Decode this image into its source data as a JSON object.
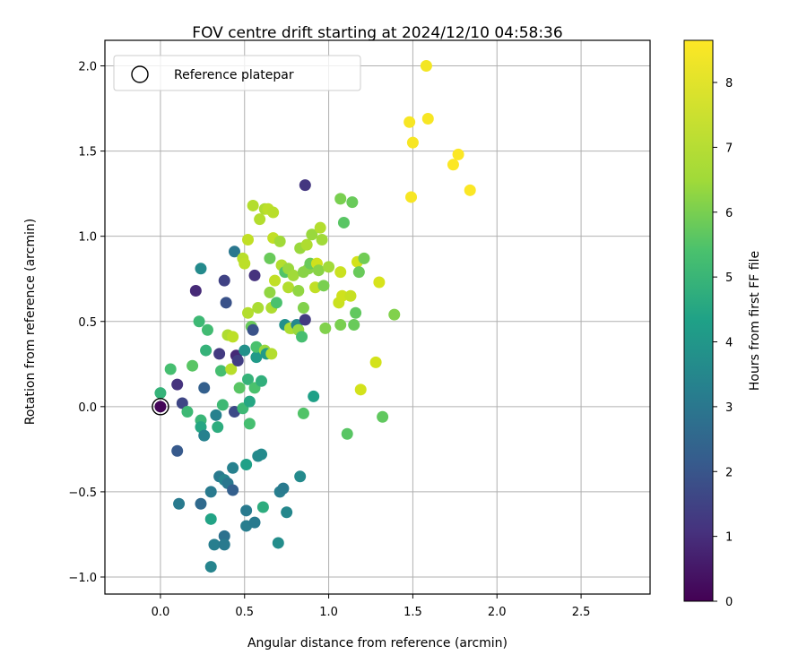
{
  "chart_data": {
    "type": "scatter",
    "title": "FOV centre drift starting at 2024/12/10 04:58:36",
    "xlabel": "Angular distance from reference (arcmin)",
    "ylabel": "Rotation from reference (arcmin)",
    "xlim": [
      -0.33,
      2.91
    ],
    "ylim": [
      -1.1,
      2.15
    ],
    "xticks": [
      0.0,
      0.5,
      1.0,
      1.5,
      2.0,
      2.5
    ],
    "xtick_labels": [
      "0.0",
      "0.5",
      "1.0",
      "1.5",
      "2.0",
      "2.5"
    ],
    "yticks": [
      -1.0,
      -0.5,
      0.0,
      0.5,
      1.0,
      1.5,
      2.0
    ],
    "ytick_labels": [
      "−1.0",
      "−0.5",
      "0.0",
      "0.5",
      "1.0",
      "1.5",
      "2.0"
    ],
    "grid": true,
    "legend": {
      "placement": "top-left",
      "entries": [
        "Reference platepar"
      ]
    },
    "reference_point": {
      "x": 0.0,
      "y": 0.0,
      "label": "Reference platepar"
    },
    "colorbar": {
      "label": "Hours from first FF file",
      "colormap": "viridis",
      "range": [
        0,
        8.65
      ],
      "ticks": [
        0,
        1,
        2,
        3,
        4,
        5,
        6,
        7,
        8
      ],
      "tick_labels": [
        "0",
        "1",
        "2",
        "3",
        "4",
        "5",
        "6",
        "7",
        "8"
      ]
    },
    "points": [
      {
        "x": 0.0,
        "y": 0.0,
        "c": 0.1
      },
      {
        "x": 0.0,
        "y": 0.08,
        "c": 4.9
      },
      {
        "x": 0.06,
        "y": 0.22,
        "c": 5.3
      },
      {
        "x": 0.1,
        "y": 0.13,
        "c": 1.1
      },
      {
        "x": 0.13,
        "y": 0.02,
        "c": 1.6
      },
      {
        "x": 0.1,
        "y": -0.26,
        "c": 2.1
      },
      {
        "x": 0.11,
        "y": -0.57,
        "c": 3.1
      },
      {
        "x": 0.16,
        "y": -0.03,
        "c": 5.1
      },
      {
        "x": 0.19,
        "y": 0.24,
        "c": 5.6
      },
      {
        "x": 0.21,
        "y": 0.68,
        "c": 0.9
      },
      {
        "x": 0.24,
        "y": 0.81,
        "c": 3.6
      },
      {
        "x": 0.23,
        "y": 0.5,
        "c": 5.1
      },
      {
        "x": 0.24,
        "y": -0.08,
        "c": 5.0
      },
      {
        "x": 0.24,
        "y": -0.12,
        "c": 4.5
      },
      {
        "x": 0.24,
        "y": -0.57,
        "c": 2.6
      },
      {
        "x": 0.26,
        "y": 0.11,
        "c": 2.3
      },
      {
        "x": 0.26,
        "y": -0.17,
        "c": 3.3
      },
      {
        "x": 0.27,
        "y": 0.33,
        "c": 4.9
      },
      {
        "x": 0.28,
        "y": 0.45,
        "c": 5.2
      },
      {
        "x": 0.3,
        "y": -0.5,
        "c": 3.1
      },
      {
        "x": 0.3,
        "y": -0.66,
        "c": 4.4
      },
      {
        "x": 0.3,
        "y": -0.94,
        "c": 3.4
      },
      {
        "x": 0.32,
        "y": -0.81,
        "c": 3.2
      },
      {
        "x": 0.33,
        "y": -0.05,
        "c": 3.3
      },
      {
        "x": 0.34,
        "y": -0.12,
        "c": 4.7
      },
      {
        "x": 0.35,
        "y": 0.31,
        "c": 1.3
      },
      {
        "x": 0.35,
        "y": -0.41,
        "c": 3.1
      },
      {
        "x": 0.36,
        "y": 0.21,
        "c": 5.3
      },
      {
        "x": 0.37,
        "y": 0.01,
        "c": 5.1
      },
      {
        "x": 0.38,
        "y": 0.74,
        "c": 1.5
      },
      {
        "x": 0.38,
        "y": -0.43,
        "c": 3.4
      },
      {
        "x": 0.38,
        "y": -0.76,
        "c": 2.8
      },
      {
        "x": 0.38,
        "y": -0.81,
        "c": 3.1
      },
      {
        "x": 0.39,
        "y": 0.61,
        "c": 1.9
      },
      {
        "x": 0.4,
        "y": -0.45,
        "c": 3.0
      },
      {
        "x": 0.4,
        "y": 0.42,
        "c": 6.8
      },
      {
        "x": 0.42,
        "y": 0.22,
        "c": 7.0
      },
      {
        "x": 0.43,
        "y": -0.36,
        "c": 3.3
      },
      {
        "x": 0.43,
        "y": -0.49,
        "c": 2.3
      },
      {
        "x": 0.43,
        "y": 0.41,
        "c": 7.1
      },
      {
        "x": 0.44,
        "y": 0.91,
        "c": 3.0
      },
      {
        "x": 0.44,
        "y": -0.03,
        "c": 1.7
      },
      {
        "x": 0.45,
        "y": 0.3,
        "c": 0.9
      },
      {
        "x": 0.46,
        "y": 0.27,
        "c": 1.4
      },
      {
        "x": 0.47,
        "y": 0.11,
        "c": 5.6
      },
      {
        "x": 0.49,
        "y": 0.87,
        "c": 7.0
      },
      {
        "x": 0.49,
        "y": -0.01,
        "c": 5.1
      },
      {
        "x": 0.5,
        "y": 0.84,
        "c": 7.1
      },
      {
        "x": 0.5,
        "y": 0.33,
        "c": 3.8
      },
      {
        "x": 0.51,
        "y": -0.34,
        "c": 4.3
      },
      {
        "x": 0.51,
        "y": -0.61,
        "c": 3.1
      },
      {
        "x": 0.51,
        "y": -0.7,
        "c": 3.2
      },
      {
        "x": 0.52,
        "y": 0.98,
        "c": 7.2
      },
      {
        "x": 0.52,
        "y": 0.55,
        "c": 6.9
      },
      {
        "x": 0.52,
        "y": 0.16,
        "c": 4.9
      },
      {
        "x": 0.53,
        "y": -0.1,
        "c": 5.3
      },
      {
        "x": 0.53,
        "y": 0.03,
        "c": 4.5
      },
      {
        "x": 0.54,
        "y": 0.47,
        "c": 5.8
      },
      {
        "x": 0.55,
        "y": 1.18,
        "c": 6.9
      },
      {
        "x": 0.55,
        "y": 0.45,
        "c": 1.9
      },
      {
        "x": 0.56,
        "y": 0.11,
        "c": 5.4
      },
      {
        "x": 0.56,
        "y": 0.77,
        "c": 1.1
      },
      {
        "x": 0.56,
        "y": -0.68,
        "c": 3.1
      },
      {
        "x": 0.57,
        "y": 0.29,
        "c": 4.1
      },
      {
        "x": 0.57,
        "y": 0.35,
        "c": 5.4
      },
      {
        "x": 0.58,
        "y": 0.58,
        "c": 6.7
      },
      {
        "x": 0.58,
        "y": -0.29,
        "c": 3.6
      },
      {
        "x": 0.59,
        "y": 1.1,
        "c": 6.9
      },
      {
        "x": 0.6,
        "y": 0.15,
        "c": 4.8
      },
      {
        "x": 0.6,
        "y": -0.28,
        "c": 3.6
      },
      {
        "x": 0.61,
        "y": -0.59,
        "c": 4.7
      },
      {
        "x": 0.62,
        "y": 1.16,
        "c": 6.8
      },
      {
        "x": 0.62,
        "y": 0.33,
        "c": 6.4
      },
      {
        "x": 0.63,
        "y": 0.31,
        "c": 4.1
      },
      {
        "x": 0.64,
        "y": 1.16,
        "c": 7.1
      },
      {
        "x": 0.65,
        "y": 0.87,
        "c": 5.8
      },
      {
        "x": 0.65,
        "y": 0.67,
        "c": 6.3
      },
      {
        "x": 0.66,
        "y": 0.58,
        "c": 6.8
      },
      {
        "x": 0.66,
        "y": 0.31,
        "c": 6.9
      },
      {
        "x": 0.67,
        "y": 0.99,
        "c": 7.2
      },
      {
        "x": 0.67,
        "y": 1.14,
        "c": 7.0
      },
      {
        "x": 0.68,
        "y": 0.74,
        "c": 7.2
      },
      {
        "x": 0.69,
        "y": 0.61,
        "c": 5.4
      },
      {
        "x": 0.7,
        "y": -0.8,
        "c": 3.7
      },
      {
        "x": 0.71,
        "y": -0.5,
        "c": 3.2
      },
      {
        "x": 0.71,
        "y": 0.97,
        "c": 6.5
      },
      {
        "x": 0.72,
        "y": 0.83,
        "c": 6.9
      },
      {
        "x": 0.73,
        "y": -0.48,
        "c": 3.1
      },
      {
        "x": 0.74,
        "y": 0.79,
        "c": 5.5
      },
      {
        "x": 0.74,
        "y": 0.48,
        "c": 3.8
      },
      {
        "x": 0.75,
        "y": -0.62,
        "c": 3.5
      },
      {
        "x": 0.76,
        "y": 0.81,
        "c": 6.4
      },
      {
        "x": 0.76,
        "y": 0.7,
        "c": 6.9
      },
      {
        "x": 0.77,
        "y": 0.46,
        "c": 6.7
      },
      {
        "x": 0.78,
        "y": 0.46,
        "c": 6.8
      },
      {
        "x": 0.79,
        "y": 0.77,
        "c": 6.5
      },
      {
        "x": 0.81,
        "y": 0.48,
        "c": 3.5
      },
      {
        "x": 0.82,
        "y": 0.68,
        "c": 6.3
      },
      {
        "x": 0.82,
        "y": 0.45,
        "c": 6.4
      },
      {
        "x": 0.83,
        "y": 0.93,
        "c": 6.4
      },
      {
        "x": 0.83,
        "y": -0.41,
        "c": 3.6
      },
      {
        "x": 0.84,
        "y": 0.41,
        "c": 5.3
      },
      {
        "x": 0.85,
        "y": -0.04,
        "c": 5.5
      },
      {
        "x": 0.85,
        "y": 0.79,
        "c": 6.2
      },
      {
        "x": 0.85,
        "y": 0.58,
        "c": 6.1
      },
      {
        "x": 0.86,
        "y": 0.51,
        "c": 1.3
      },
      {
        "x": 0.86,
        "y": 1.3,
        "c": 1.2
      },
      {
        "x": 0.87,
        "y": 0.95,
        "c": 6.8
      },
      {
        "x": 0.88,
        "y": 0.81,
        "c": 6.2
      },
      {
        "x": 0.89,
        "y": 0.84,
        "c": 5.8
      },
      {
        "x": 0.9,
        "y": 1.01,
        "c": 6.4
      },
      {
        "x": 0.91,
        "y": 0.06,
        "c": 4.3
      },
      {
        "x": 0.92,
        "y": 0.7,
        "c": 7.2
      },
      {
        "x": 0.93,
        "y": 0.84,
        "c": 7.5
      },
      {
        "x": 0.94,
        "y": 0.8,
        "c": 6.2
      },
      {
        "x": 0.95,
        "y": 1.05,
        "c": 6.9
      },
      {
        "x": 0.96,
        "y": 0.98,
        "c": 6.5
      },
      {
        "x": 0.97,
        "y": 0.71,
        "c": 6.0
      },
      {
        "x": 0.98,
        "y": 0.46,
        "c": 6.1
      },
      {
        "x": 1.0,
        "y": 0.82,
        "c": 6.5
      },
      {
        "x": 1.06,
        "y": 0.61,
        "c": 7.4
      },
      {
        "x": 1.07,
        "y": 0.48,
        "c": 6.0
      },
      {
        "x": 1.07,
        "y": 0.79,
        "c": 7.4
      },
      {
        "x": 1.07,
        "y": 1.22,
        "c": 6.0
      },
      {
        "x": 1.08,
        "y": 0.65,
        "c": 7.5
      },
      {
        "x": 1.09,
        "y": 1.08,
        "c": 5.6
      },
      {
        "x": 1.11,
        "y": -0.16,
        "c": 5.6
      },
      {
        "x": 1.13,
        "y": 0.65,
        "c": 7.3
      },
      {
        "x": 1.14,
        "y": 1.2,
        "c": 5.8
      },
      {
        "x": 1.15,
        "y": 0.48,
        "c": 5.8
      },
      {
        "x": 1.16,
        "y": 0.55,
        "c": 5.7
      },
      {
        "x": 1.17,
        "y": 0.85,
        "c": 7.6
      },
      {
        "x": 1.18,
        "y": 0.79,
        "c": 5.8
      },
      {
        "x": 1.19,
        "y": 0.1,
        "c": 7.6
      },
      {
        "x": 1.21,
        "y": 0.87,
        "c": 5.9
      },
      {
        "x": 1.28,
        "y": 0.26,
        "c": 7.6
      },
      {
        "x": 1.3,
        "y": 0.73,
        "c": 7.7
      },
      {
        "x": 1.32,
        "y": -0.06,
        "c": 5.7
      },
      {
        "x": 1.39,
        "y": 0.54,
        "c": 6.1
      },
      {
        "x": 1.48,
        "y": 1.67,
        "c": 8.5
      },
      {
        "x": 1.49,
        "y": 1.23,
        "c": 8.5
      },
      {
        "x": 1.5,
        "y": 1.55,
        "c": 8.5
      },
      {
        "x": 1.58,
        "y": 2.0,
        "c": 8.4
      },
      {
        "x": 1.59,
        "y": 1.69,
        "c": 8.5
      },
      {
        "x": 1.74,
        "y": 1.42,
        "c": 8.6
      },
      {
        "x": 1.77,
        "y": 1.48,
        "c": 8.6
      },
      {
        "x": 1.84,
        "y": 1.27,
        "c": 8.6
      }
    ]
  }
}
